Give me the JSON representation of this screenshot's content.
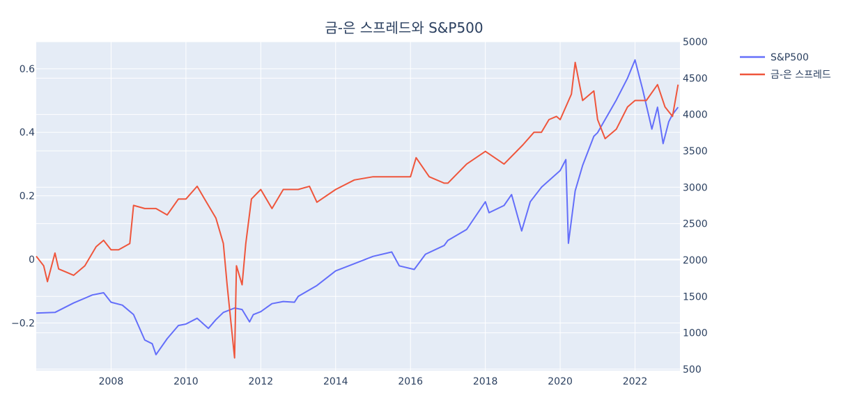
{
  "chart_data": {
    "type": "line",
    "title": "금-은 스프레드와 S&P500",
    "xlabel": "",
    "ylabel": "",
    "y2label": "",
    "xlim": [
      2006.0,
      2023.2
    ],
    "ylim": [
      -0.35,
      0.685
    ],
    "y2lim": [
      480,
      5000
    ],
    "x_ticks": [
      2008,
      2010,
      2012,
      2014,
      2016,
      2018,
      2020,
      2022
    ],
    "y_ticks": [
      -0.2,
      0,
      0.2,
      0.4,
      0.6
    ],
    "y2_ticks": [
      500,
      1000,
      1500,
      2000,
      2500,
      3000,
      3500,
      4000,
      4500,
      5000
    ],
    "grid": true,
    "legend_position": "top-right-outside",
    "series": [
      {
        "name": "S&P500",
        "axis": "y2",
        "color": "#636efa",
        "x": [
          2006.0,
          2006.5,
          2007.0,
          2007.5,
          2007.8,
          2008.0,
          2008.3,
          2008.6,
          2008.9,
          2009.1,
          2009.2,
          2009.5,
          2009.8,
          2010.0,
          2010.3,
          2010.6,
          2010.8,
          2011.0,
          2011.3,
          2011.5,
          2011.7,
          2011.8,
          2012.0,
          2012.3,
          2012.6,
          2012.9,
          2013.0,
          2013.5,
          2014.0,
          2014.5,
          2015.0,
          2015.5,
          2015.7,
          2016.1,
          2016.4,
          2016.9,
          2017.0,
          2017.5,
          2018.0,
          2018.1,
          2018.5,
          2018.7,
          2018.97,
          2019.2,
          2019.5,
          2020.0,
          2020.15,
          2020.22,
          2020.4,
          2020.6,
          2020.9,
          2021.0,
          2021.5,
          2021.8,
          2022.0,
          2022.2,
          2022.45,
          2022.6,
          2022.75,
          2022.9,
          2023.0,
          2023.15
        ],
        "y": [
          1270,
          1280,
          1410,
          1520,
          1550,
          1420,
          1380,
          1250,
          900,
          850,
          700,
          920,
          1100,
          1120,
          1200,
          1060,
          1180,
          1280,
          1340,
          1320,
          1150,
          1250,
          1290,
          1400,
          1430,
          1420,
          1500,
          1650,
          1850,
          1950,
          2050,
          2110,
          1920,
          1870,
          2080,
          2200,
          2270,
          2420,
          2800,
          2650,
          2750,
          2900,
          2400,
          2800,
          3000,
          3230,
          3380,
          2230,
          2950,
          3300,
          3700,
          3750,
          4200,
          4500,
          4750,
          4350,
          3800,
          4100,
          3600,
          3900,
          4000,
          4100
        ]
      },
      {
        "name": "금-은 스프레드",
        "axis": "y",
        "color": "#ef553b",
        "x": [
          2006.0,
          2006.2,
          2006.3,
          2006.5,
          2006.6,
          2006.8,
          2007.0,
          2007.3,
          2007.6,
          2007.8,
          2008.0,
          2008.2,
          2008.5,
          2008.6,
          2008.9,
          2009.2,
          2009.5,
          2009.8,
          2010.0,
          2010.3,
          2010.5,
          2010.8,
          2011.0,
          2011.1,
          2011.3,
          2011.35,
          2011.5,
          2011.6,
          2011.75,
          2012.0,
          2012.3,
          2012.6,
          2013.0,
          2013.3,
          2013.5,
          2014.0,
          2014.5,
          2015.0,
          2015.5,
          2016.0,
          2016.15,
          2016.5,
          2016.9,
          2017.0,
          2017.5,
          2018.0,
          2018.5,
          2019.0,
          2019.3,
          2019.5,
          2019.7,
          2019.9,
          2020.0,
          2020.3,
          2020.4,
          2020.6,
          2020.9,
          2021.0,
          2021.2,
          2021.5,
          2021.8,
          2022.0,
          2022.3,
          2022.6,
          2022.8,
          2023.0,
          2023.15
        ],
        "y": [
          0.01,
          -0.02,
          -0.07,
          0.02,
          -0.03,
          -0.04,
          -0.05,
          -0.02,
          0.04,
          0.06,
          0.03,
          0.03,
          0.05,
          0.17,
          0.16,
          0.16,
          0.14,
          0.19,
          0.19,
          0.23,
          0.19,
          0.13,
          0.05,
          -0.08,
          -0.31,
          -0.02,
          -0.08,
          0.05,
          0.19,
          0.22,
          0.16,
          0.22,
          0.22,
          0.23,
          0.18,
          0.22,
          0.25,
          0.26,
          0.26,
          0.26,
          0.32,
          0.26,
          0.24,
          0.24,
          0.3,
          0.34,
          0.3,
          0.36,
          0.4,
          0.4,
          0.44,
          0.45,
          0.44,
          0.52,
          0.62,
          0.5,
          0.53,
          0.44,
          0.38,
          0.41,
          0.48,
          0.5,
          0.5,
          0.55,
          0.48,
          0.45,
          0.55
        ]
      }
    ]
  }
}
